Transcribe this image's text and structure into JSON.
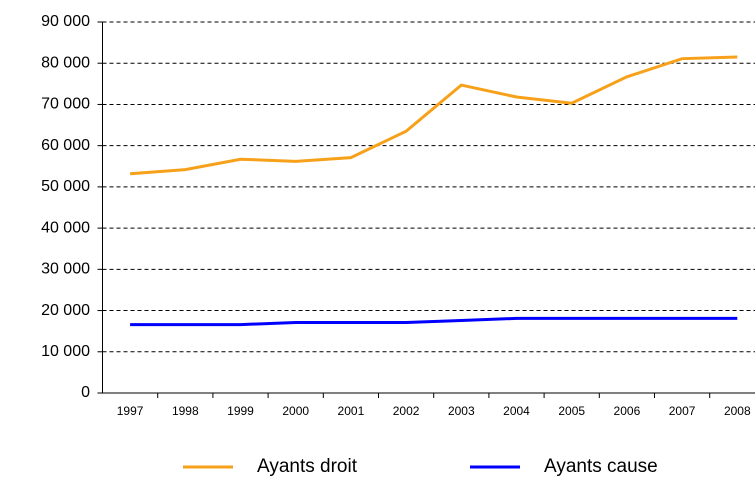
{
  "chart_data": {
    "type": "line",
    "categories": [
      "1997",
      "1998",
      "1999",
      "2000",
      "2001",
      "2002",
      "2003",
      "2004",
      "2005",
      "2006",
      "2007",
      "2008"
    ],
    "series": [
      {
        "name": "Ayants droit",
        "color": "#f7a11a",
        "values": [
          53200,
          54200,
          56700,
          56200,
          57100,
          63500,
          74700,
          71800,
          70300,
          76700,
          81100,
          81500
        ]
      },
      {
        "name": "Ayants cause",
        "color": "#0000ff",
        "values": [
          16600,
          16600,
          16600,
          17100,
          17100,
          17100,
          17600,
          18100,
          18100,
          18100,
          18100,
          18100
        ]
      }
    ],
    "ylim": [
      0,
      90000
    ],
    "yticks": [
      0,
      {
        "value": 10000,
        "label": "10 000"
      },
      {
        "value": 20000,
        "label": "20 000"
      },
      {
        "value": 30000,
        "label": "30 000"
      },
      {
        "value": 40000,
        "label": "40 000"
      },
      {
        "value": 50000,
        "label": "50 000"
      },
      {
        "value": 60000,
        "label": "60 000"
      },
      {
        "value": 70000,
        "label": "70 000"
      },
      {
        "value": 80000,
        "label": "80 000"
      },
      {
        "value": 90000,
        "label": "90 000"
      }
    ],
    "grid": true,
    "legend": "bottom"
  }
}
